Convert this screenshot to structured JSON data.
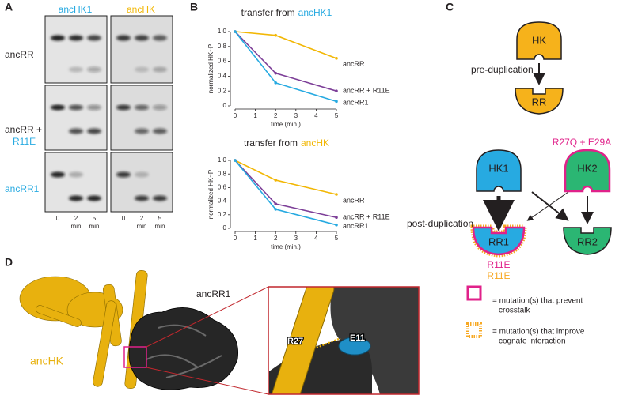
{
  "panels": {
    "A": {
      "label": "A",
      "columns": [
        "ancHK1",
        "ancHK"
      ],
      "rows": [
        "ancRR",
        "ancRR +",
        "R11E",
        "ancRR1"
      ],
      "times": [
        "0",
        "2",
        "5"
      ],
      "unit": "min"
    },
    "B": {
      "label": "B",
      "charts": [
        {
          "type": "line",
          "title": "transfer from",
          "title_highlight": "ancHK1",
          "ylabel": "normalized HK~P",
          "xlabel": "time (min.)",
          "x": [
            0,
            2,
            5
          ],
          "xlim": [
            0,
            5
          ],
          "xticks": [
            0,
            1,
            2,
            3,
            4,
            5
          ],
          "ylim": [
            0,
            1
          ],
          "yticks": [
            0,
            0.2,
            0.4,
            0.6,
            0.8,
            {
              "value": 1,
              "label": "1.0"
            }
          ],
          "series": [
            {
              "name": "ancRR",
              "color": "#f2b705",
              "values": [
                1,
                0.95,
                0.64
              ]
            },
            {
              "name": "ancRR + R11E",
              "color": "#7d3f98",
              "values": [
                1,
                0.44,
                0.2
              ]
            },
            {
              "name": "ancRR1",
              "color": "#27aae1",
              "values": [
                1,
                0.31,
                0.06
              ]
            }
          ]
        },
        {
          "type": "line",
          "title": "transfer from",
          "title_highlight": "ancHK",
          "ylabel": "normalized HK~P",
          "xlabel": "time (min.)",
          "x": [
            0,
            2,
            5
          ],
          "xlim": [
            0,
            5
          ],
          "xticks": [
            0,
            1,
            2,
            3,
            4,
            5
          ],
          "ylim": [
            0,
            1
          ],
          "yticks": [
            0,
            0.2,
            0.4,
            0.6,
            0.8,
            {
              "value": 1,
              "label": "1.0"
            }
          ],
          "series": [
            {
              "name": "ancRR",
              "color": "#f2b705",
              "values": [
                1,
                0.71,
                0.5
              ]
            },
            {
              "name": "ancRR + R11E",
              "color": "#7d3f98",
              "values": [
                1,
                0.36,
                0.16
              ]
            },
            {
              "name": "ancRR1",
              "color": "#27aae1",
              "values": [
                1,
                0.28,
                0.05
              ]
            }
          ]
        }
      ]
    },
    "C": {
      "label": "C",
      "hk": "HK",
      "pre": "pre-duplication",
      "rr": "RR",
      "mutations_hk2": "R27Q + E29A",
      "hk1": "HK1",
      "hk2": "HK2",
      "post": "post-duplication",
      "rr1": "RR1",
      "rr2": "RR2",
      "rr1_mut_a": "R11E",
      "rr1_mut_b": "R11E",
      "legend": [
        "= mutation(s) that prevent",
        "crosstalk",
        "= mutation(s) that improve",
        "cognate interaction"
      ]
    },
    "D": {
      "label": "D",
      "ancrr1": "ancRR1",
      "anchk": "ancHK",
      "r27": "R27",
      "e11": "E11"
    }
  }
}
